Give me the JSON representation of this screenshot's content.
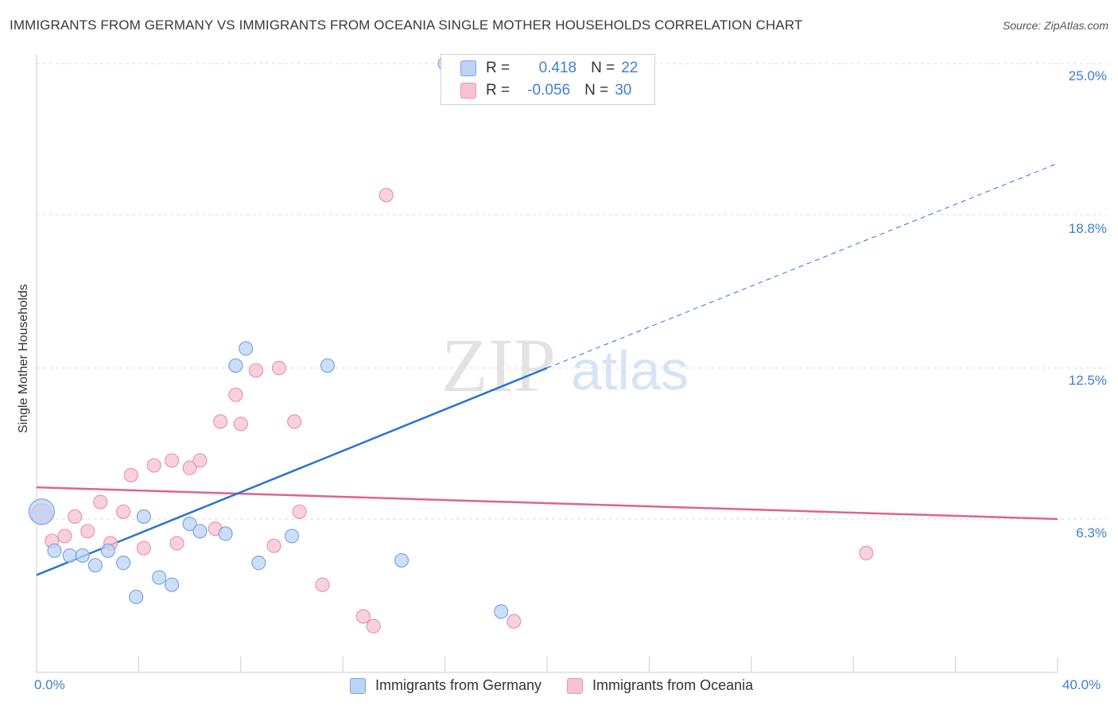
{
  "title": "IMMIGRANTS FROM GERMANY VS IMMIGRANTS FROM OCEANIA SINGLE MOTHER HOUSEHOLDS CORRELATION CHART",
  "source": "Source: ZipAtlas.com",
  "watermark": {
    "zip": "ZIP",
    "atlas": "atlas"
  },
  "stats": {
    "germany": {
      "r_label": "R =",
      "r_value": "0.418",
      "n_label": "N =",
      "n_value": "22"
    },
    "oceania": {
      "r_label": "R =",
      "r_value": "-0.056",
      "n_label": "N =",
      "n_value": "30"
    }
  },
  "legend": {
    "germany": "Immigrants from Germany",
    "oceania": "Immigrants from Oceania"
  },
  "colors": {
    "germany_fill": "#bcd3f5",
    "germany_stroke": "#7aa6e0",
    "germany_line": "#2b73d2",
    "oceania_fill": "#f7c2d1",
    "oceania_stroke": "#e896ae",
    "oceania_line": "#e0628f",
    "tick": "#3f7fd0",
    "grid": "#dddddd"
  },
  "chart_data": {
    "type": "scatter",
    "title": "IMMIGRANTS FROM GERMANY VS IMMIGRANTS FROM OCEANIA SINGLE MOTHER HOUSEHOLDS CORRELATION CHART",
    "xlabel": "",
    "ylabel": "Single Mother Households",
    "xlim": [
      0,
      40
    ],
    "ylim": [
      0,
      25
    ],
    "x_tick_labels": [
      "0.0%",
      "40.0%"
    ],
    "y_ticks": [
      6.3,
      12.5,
      18.8,
      25.0
    ],
    "y_tick_labels": [
      "6.3%",
      "12.5%",
      "18.8%",
      "25.0%"
    ],
    "series": [
      {
        "name": "Immigrants from Germany",
        "points": [
          [
            0.2,
            6.6,
            3
          ],
          [
            0.7,
            5.0,
            1
          ],
          [
            1.3,
            4.8,
            1
          ],
          [
            1.8,
            4.8,
            1
          ],
          [
            2.3,
            4.4,
            1
          ],
          [
            2.8,
            5.0,
            1
          ],
          [
            3.4,
            4.5,
            1
          ],
          [
            3.9,
            3.1,
            1
          ],
          [
            4.2,
            6.4,
            1
          ],
          [
            4.8,
            3.9,
            1
          ],
          [
            5.3,
            3.6,
            1
          ],
          [
            6.0,
            6.1,
            1
          ],
          [
            6.4,
            5.8,
            1
          ],
          [
            7.4,
            5.7,
            1
          ],
          [
            7.8,
            12.6,
            1
          ],
          [
            8.2,
            13.3,
            1
          ],
          [
            8.7,
            4.5,
            1
          ],
          [
            10.0,
            5.6,
            1
          ],
          [
            11.4,
            12.6,
            1
          ],
          [
            14.3,
            4.6,
            1
          ],
          [
            16.0,
            25.0,
            1
          ],
          [
            18.2,
            2.5,
            1
          ]
        ],
        "trend": {
          "x0": 0,
          "y0": 4.0,
          "x1": 20,
          "y1": 12.5,
          "dash_x1": 40,
          "dash_y1": 20.9
        }
      },
      {
        "name": "Immigrants from Oceania",
        "points": [
          [
            0.2,
            6.5,
            2
          ],
          [
            0.6,
            5.4,
            1
          ],
          [
            1.1,
            5.6,
            1
          ],
          [
            1.5,
            6.4,
            1
          ],
          [
            2.0,
            5.8,
            1
          ],
          [
            2.5,
            7.0,
            1
          ],
          [
            2.9,
            5.3,
            1
          ],
          [
            3.4,
            6.6,
            1
          ],
          [
            3.7,
            8.1,
            1
          ],
          [
            4.2,
            5.1,
            1
          ],
          [
            4.6,
            8.5,
            1
          ],
          [
            5.3,
            8.7,
            1
          ],
          [
            5.5,
            5.3,
            1
          ],
          [
            6.0,
            8.4,
            1
          ],
          [
            6.4,
            8.7,
            1
          ],
          [
            7.0,
            5.9,
            1
          ],
          [
            7.2,
            10.3,
            1
          ],
          [
            7.8,
            11.4,
            1
          ],
          [
            8.0,
            10.2,
            1
          ],
          [
            8.6,
            12.4,
            1
          ],
          [
            9.3,
            5.2,
            1
          ],
          [
            9.5,
            12.5,
            1
          ],
          [
            10.1,
            10.3,
            1
          ],
          [
            10.3,
            6.6,
            1
          ],
          [
            11.2,
            3.6,
            1
          ],
          [
            12.8,
            2.3,
            1
          ],
          [
            13.2,
            1.9,
            1
          ],
          [
            13.7,
            19.6,
            1
          ],
          [
            18.7,
            2.1,
            1
          ],
          [
            32.5,
            4.9,
            1
          ]
        ],
        "trend": {
          "x0": 0,
          "y0": 7.6,
          "x1": 40,
          "y1": 6.3
        }
      }
    ]
  }
}
